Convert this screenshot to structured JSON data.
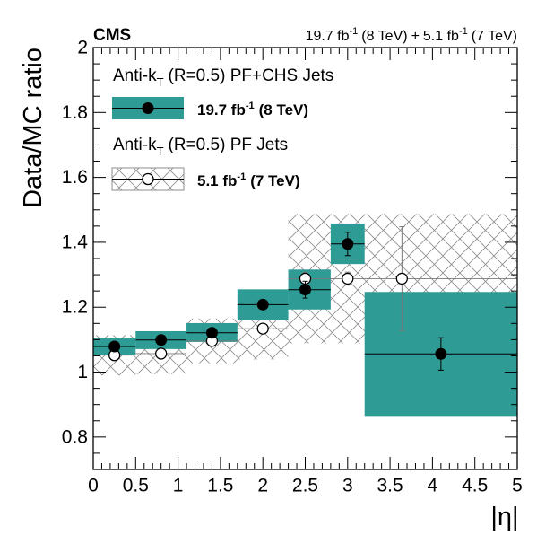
{
  "chart_data": {
    "type": "scatter",
    "experiment_label": "CMS",
    "lumi_label": {
      "a_value": "19.7 fb",
      "a_sup": "-1",
      "a_energy": "(8 TeV)",
      "joiner": "+",
      "b_value": "5.1 fb",
      "b_sup": "-1",
      "b_energy": "(7 TeV)"
    },
    "xlabel": "|η|",
    "ylabel": "Data/MC ratio",
    "xlim": [
      0,
      5
    ],
    "ylim": [
      0.7,
      2.0
    ],
    "xticks": [
      "0",
      "0.5",
      "1",
      "1.5",
      "2",
      "2.5",
      "3",
      "3.5",
      "4",
      "4.5",
      "5"
    ],
    "yticks": [
      "0.8",
      "1",
      "1.2",
      "1.4",
      "1.6",
      "1.8",
      "2"
    ],
    "legend": {
      "jets_8tev_prefix": "Anti-k",
      "jets_8tev_sub": "T",
      "jets_8tev_rest": "(R=0.5) PF+CHS Jets",
      "entry_8tev_value": "19.7 fb",
      "entry_8tev_sup": "-1",
      "entry_8tev_energy": "(8 TeV)",
      "jets_7tev_prefix": "Anti-k",
      "jets_7tev_sub": "T",
      "jets_7tev_rest": "(R=0.5) PF Jets",
      "entry_7tev_value": "5.1 fb",
      "entry_7tev_sup": "-1",
      "entry_7tev_energy": "(7 TeV)"
    },
    "series": [
      {
        "name": "19.7 fb-1 (8 TeV)",
        "style": "filled-circle",
        "band_color": "#2e9b95",
        "bins": [
          {
            "xlo": 0.0,
            "xhi": 0.5,
            "x": 0.25,
            "y": 1.079,
            "stat": 0.008,
            "syst_lo": 1.052,
            "syst_hi": 1.104
          },
          {
            "xlo": 0.5,
            "xhi": 1.1,
            "x": 0.8,
            "y": 1.099,
            "stat": 0.008,
            "syst_lo": 1.071,
            "syst_hi": 1.126
          },
          {
            "xlo": 1.1,
            "xhi": 1.7,
            "x": 1.4,
            "y": 1.121,
            "stat": 0.01,
            "syst_lo": 1.093,
            "syst_hi": 1.151
          },
          {
            "xlo": 1.7,
            "xhi": 2.3,
            "x": 2.0,
            "y": 1.208,
            "stat": 0.013,
            "syst_lo": 1.16,
            "syst_hi": 1.255
          },
          {
            "xlo": 2.3,
            "xhi": 2.8,
            "x": 2.5,
            "y": 1.254,
            "stat": 0.026,
            "syst_lo": 1.193,
            "syst_hi": 1.316
          },
          {
            "xlo": 2.8,
            "xhi": 3.2,
            "x": 3.0,
            "y": 1.395,
            "stat": 0.036,
            "syst_lo": 1.333,
            "syst_hi": 1.458
          },
          {
            "xlo": 3.2,
            "xhi": 5.0,
            "x": 4.1,
            "y": 1.056,
            "stat": 0.05,
            "syst_lo": 0.865,
            "syst_hi": 1.247
          }
        ]
      },
      {
        "name": "5.1 fb-1 (7 TeV)",
        "style": "open-circle",
        "band_color": "#9a9a9a",
        "bins": [
          {
            "xlo": 0.0,
            "xhi": 0.5,
            "x": 0.25,
            "y": 1.052,
            "stat": 0.008,
            "syst_lo": 0.99,
            "syst_hi": 1.114
          },
          {
            "xlo": 0.5,
            "xhi": 1.1,
            "x": 0.8,
            "y": 1.057,
            "stat": 0.008,
            "syst_lo": 0.994,
            "syst_hi": 1.12
          },
          {
            "xlo": 1.1,
            "xhi": 1.7,
            "x": 1.4,
            "y": 1.096,
            "stat": 0.01,
            "syst_lo": 1.027,
            "syst_hi": 1.165
          },
          {
            "xlo": 1.7,
            "xhi": 2.3,
            "x": 2.0,
            "y": 1.134,
            "stat": 0.013,
            "syst_lo": 1.039,
            "syst_hi": 1.228
          },
          {
            "xlo": 2.3,
            "xhi": 2.8,
            "x": 2.5,
            "y": 1.288,
            "stat": 0.02,
            "syst_lo": 1.089,
            "syst_hi": 1.487
          },
          {
            "xlo": 2.8,
            "xhi": 3.2,
            "x": 3.0,
            "y": 1.288,
            "stat": 0.02,
            "syst_lo": 1.089,
            "syst_hi": 1.487
          },
          {
            "xlo": 3.2,
            "xhi": 5.0,
            "x": 3.64,
            "y": 1.288,
            "stat": 0.16,
            "syst_lo": 1.089,
            "syst_hi": 1.487
          }
        ]
      }
    ]
  }
}
